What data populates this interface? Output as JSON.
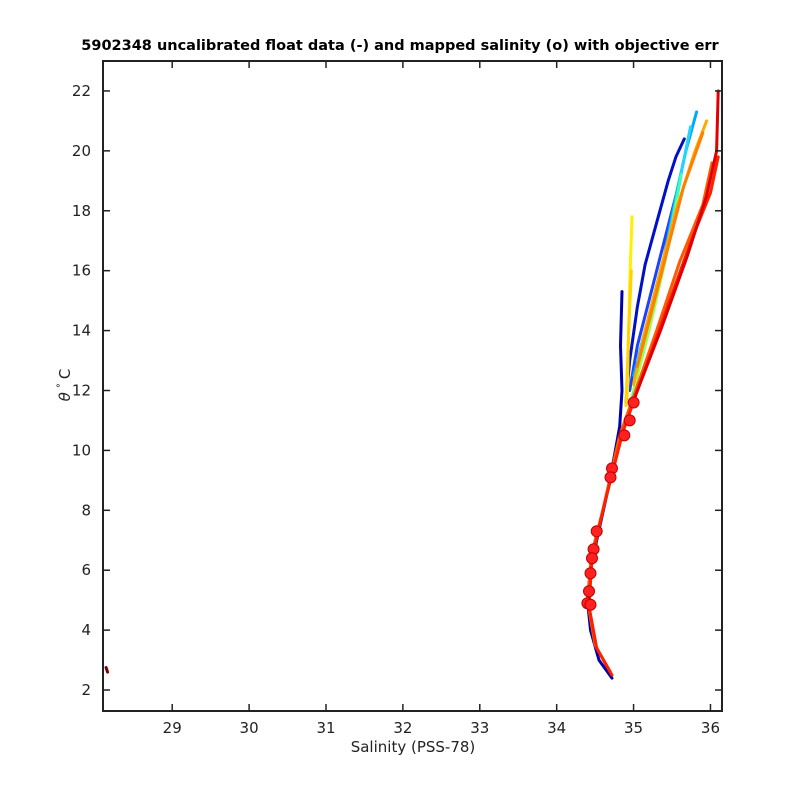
{
  "chart_data": {
    "type": "line",
    "title": "5902348 uncalibrated float data (-) and mapped salinity (o) with objective err",
    "xlabel": "Salinity (PSS-78)",
    "ylabel_symbol": "θ",
    "ylabel_degree": "°",
    "ylabel_unit": "C",
    "xlim": [
      28.1,
      36.15
    ],
    "ylim": [
      1.3,
      23.0
    ],
    "xticks": [
      29,
      30,
      31,
      32,
      33,
      34,
      35,
      36
    ],
    "yticks": [
      2,
      4,
      6,
      8,
      10,
      12,
      14,
      16,
      18,
      20,
      22
    ],
    "grid": false,
    "series": [
      {
        "color": "#0000a8",
        "points": [
          [
            34.72,
            2.4
          ],
          [
            34.55,
            3.0
          ],
          [
            34.44,
            4.0
          ],
          [
            34.4,
            5.0
          ],
          [
            34.44,
            6.0
          ],
          [
            34.52,
            7.0
          ],
          [
            34.65,
            8.5
          ],
          [
            34.75,
            9.8
          ],
          [
            34.82,
            10.8
          ],
          [
            34.85,
            12.0
          ],
          [
            34.83,
            13.5
          ],
          [
            34.85,
            15.3
          ]
        ]
      },
      {
        "color": "#0010c8",
        "points": [
          [
            34.9,
            11.6
          ],
          [
            34.95,
            13.0
          ],
          [
            35.05,
            14.8
          ],
          [
            35.15,
            16.2
          ],
          [
            35.3,
            17.6
          ],
          [
            35.45,
            19.0
          ],
          [
            35.55,
            19.8
          ],
          [
            35.66,
            20.4
          ]
        ]
      },
      {
        "color": "#1e40ff",
        "points": [
          [
            34.95,
            12.0
          ],
          [
            35.05,
            13.5
          ],
          [
            35.2,
            15.0
          ],
          [
            35.35,
            16.5
          ],
          [
            35.45,
            17.5
          ],
          [
            35.55,
            18.5
          ]
        ]
      },
      {
        "color": "#00a8ff",
        "points": [
          [
            35.0,
            12.5
          ],
          [
            35.2,
            14.5
          ],
          [
            35.4,
            16.5
          ],
          [
            35.55,
            18.5
          ],
          [
            35.68,
            20.0
          ],
          [
            35.82,
            21.3
          ]
        ]
      },
      {
        "color": "#22d4ff",
        "points": [
          [
            35.05,
            13.0
          ],
          [
            35.25,
            15.0
          ],
          [
            35.45,
            17.0
          ],
          [
            35.6,
            19.0
          ],
          [
            35.74,
            20.8
          ]
        ]
      },
      {
        "color": "#40ffb0",
        "points": [
          [
            34.92,
            11.0
          ],
          [
            35.1,
            13.2
          ],
          [
            35.3,
            15.5
          ],
          [
            35.5,
            17.5
          ],
          [
            35.62,
            19.2
          ]
        ]
      },
      {
        "color": "#9cff50",
        "points": [
          [
            35.0,
            12.0
          ],
          [
            35.2,
            14.0
          ],
          [
            35.4,
            16.2
          ],
          [
            35.58,
            18.4
          ]
        ]
      },
      {
        "color": "#fff000",
        "points": [
          [
            34.92,
            11.8
          ],
          [
            34.93,
            13.5
          ],
          [
            34.95,
            15.5
          ],
          [
            34.98,
            17.8
          ]
        ]
      },
      {
        "color": "#ffd200",
        "points": [
          [
            34.9,
            11.5
          ],
          [
            34.92,
            12.8
          ],
          [
            34.94,
            14.2
          ],
          [
            34.97,
            16.0
          ]
        ]
      },
      {
        "color": "#ffaa00",
        "points": [
          [
            35.0,
            12.2
          ],
          [
            35.15,
            14.0
          ],
          [
            35.35,
            16.0
          ],
          [
            35.55,
            18.0
          ],
          [
            35.8,
            20.0
          ],
          [
            35.95,
            21.0
          ]
        ]
      },
      {
        "color": "#ff8000",
        "points": [
          [
            35.05,
            12.8
          ],
          [
            35.25,
            14.8
          ],
          [
            35.45,
            16.8
          ],
          [
            35.65,
            18.8
          ],
          [
            35.9,
            20.6
          ]
        ]
      },
      {
        "color": "#ff5a00",
        "points": [
          [
            34.7,
            2.6
          ],
          [
            34.5,
            3.5
          ],
          [
            34.4,
            5.0
          ],
          [
            34.45,
            6.5
          ],
          [
            34.6,
            8.0
          ],
          [
            34.82,
            10.5
          ],
          [
            35.0,
            11.8
          ],
          [
            35.3,
            14.0
          ],
          [
            35.6,
            16.3
          ],
          [
            35.9,
            18.2
          ],
          [
            36.02,
            19.6
          ]
        ]
      },
      {
        "color": "#ff2000",
        "points": [
          [
            34.72,
            2.5
          ],
          [
            34.52,
            3.4
          ],
          [
            34.42,
            4.8
          ],
          [
            34.46,
            6.4
          ],
          [
            34.62,
            8.2
          ],
          [
            34.86,
            10.6
          ],
          [
            35.05,
            12.0
          ],
          [
            35.4,
            14.5
          ],
          [
            35.75,
            17.0
          ],
          [
            36.0,
            18.6
          ],
          [
            36.1,
            19.8
          ]
        ]
      },
      {
        "color": "#e00000",
        "points": [
          [
            35.02,
            11.8
          ],
          [
            35.35,
            14.0
          ],
          [
            35.7,
            16.5
          ],
          [
            35.95,
            18.5
          ],
          [
            36.08,
            20.0
          ],
          [
            36.1,
            22.0
          ]
        ]
      },
      {
        "color": "#800000",
        "points": [
          [
            28.14,
            2.75
          ],
          [
            28.16,
            2.6
          ]
        ]
      }
    ],
    "mapped_salinity": {
      "color": "#ff2020",
      "points": [
        [
          35.0,
          11.6
        ],
        [
          34.95,
          11.0
        ],
        [
          34.88,
          10.5
        ],
        [
          34.72,
          9.4
        ],
        [
          34.7,
          9.1
        ],
        [
          34.52,
          7.3
        ],
        [
          34.48,
          6.7
        ],
        [
          34.46,
          6.4
        ],
        [
          34.44,
          5.9
        ],
        [
          34.42,
          5.3
        ],
        [
          34.4,
          4.9
        ],
        [
          34.44,
          4.85
        ]
      ]
    }
  }
}
